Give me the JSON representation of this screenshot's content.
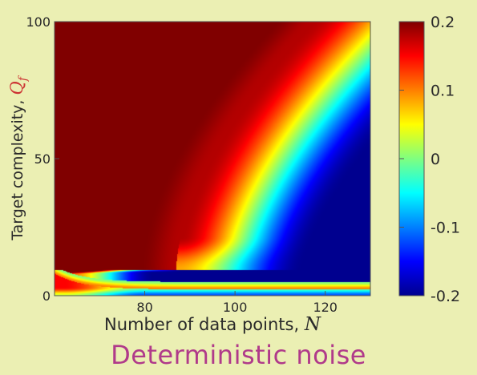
{
  "chart_data": {
    "type": "heatmap",
    "title": "",
    "xlabel": "Number of data points, ",
    "xlabel_symbol": "N",
    "ylabel": "Target complexity, ",
    "ylabel_symbol": "Q",
    "ylabel_subscript": "f",
    "xlim": [
      60,
      130
    ],
    "ylim": [
      0,
      100
    ],
    "xticks": [
      80,
      100,
      120
    ],
    "yticks": [
      0,
      50,
      100
    ],
    "colorbar": {
      "range": [
        -0.2,
        0.2
      ],
      "ticks": [
        0.2,
        0.1,
        0,
        -0.1,
        -0.2
      ],
      "tick_labels": [
        "0.2",
        "0.1",
        "0",
        "-0.1",
        "-0.2"
      ],
      "colormap": "jet"
    },
    "colormap_stops": [
      "#00008f",
      "#0000ff",
      "#00ffff",
      "#ffff00",
      "#ff0000",
      "#800000"
    ],
    "z_samples": [
      {
        "N": 65,
        "Q": 60,
        "value": 0.2
      },
      {
        "N": 85,
        "Q": 60,
        "value": 0.2
      },
      {
        "N": 90,
        "Q": 60,
        "value": 0.12
      },
      {
        "N": 95,
        "Q": 60,
        "value": 0.04
      },
      {
        "N": 100,
        "Q": 60,
        "value": -0.02
      },
      {
        "N": 110,
        "Q": 60,
        "value": -0.09
      },
      {
        "N": 125,
        "Q": 60,
        "value": -0.15
      },
      {
        "N": 100,
        "Q": 20,
        "value": -0.15
      },
      {
        "N": 110,
        "Q": 5,
        "value": -0.2
      },
      {
        "N": 100,
        "Q": 3,
        "value": 0.0
      },
      {
        "N": 65,
        "Q": 8,
        "value": 0.15
      }
    ]
  },
  "caption": "Deterministic noise"
}
